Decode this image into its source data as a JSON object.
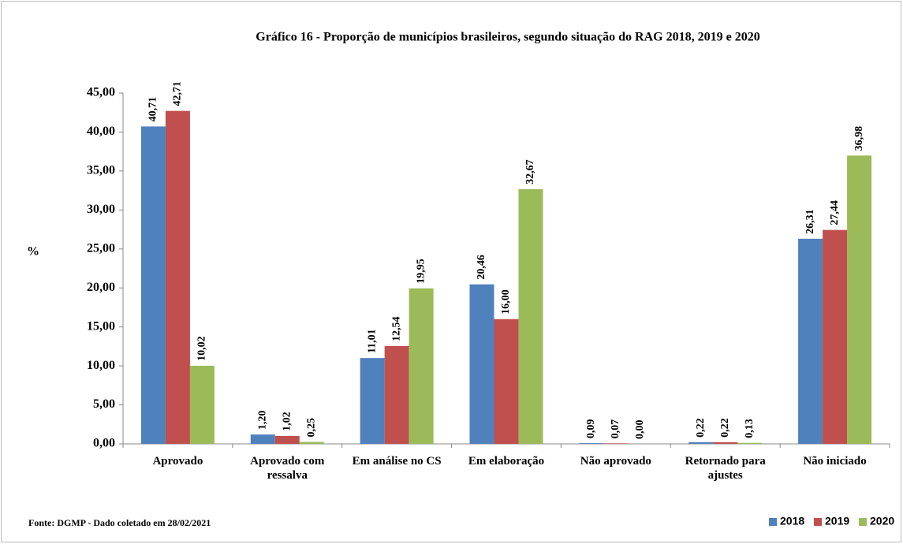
{
  "chart_data": {
    "type": "bar",
    "title": "Gráfico 16 - Proporção  de municípios brasileiros,  segundo situação do RAG  2018,  2019 e 2020",
    "y_label": "%",
    "source": "Fonte: DGMP - Dado coletado em 28/02/2021",
    "categories": [
      "Aprovado",
      "Aprovado com ressalva",
      "Em análise no CS",
      "Em elaboração",
      "Não aprovado",
      "Retornado para ajustes",
      "Não iniciado"
    ],
    "series": [
      {
        "name": "2018",
        "color": "#4f81bd",
        "values": [
          40.71,
          1.2,
          11.01,
          20.46,
          0.09,
          0.22,
          26.31
        ],
        "value_labels": [
          "40,71",
          "1,20",
          "11,01",
          "20,46",
          "0,09",
          "0,22",
          "26,31"
        ]
      },
      {
        "name": "2019",
        "color": "#c0504d",
        "values": [
          42.71,
          1.02,
          12.54,
          16.0,
          0.07,
          0.22,
          27.44
        ],
        "value_labels": [
          "42,71",
          "1,02",
          "12,54",
          "16,00",
          "0,07",
          "0,22",
          "27,44"
        ]
      },
      {
        "name": "2020",
        "color": "#9bbb59",
        "values": [
          10.02,
          0.25,
          19.95,
          32.67,
          0.0,
          0.13,
          36.98
        ],
        "value_labels": [
          "10,02",
          "0,25",
          "19,95",
          "32,67",
          "0,00",
          "0,13",
          "36,98"
        ]
      }
    ],
    "ylim": [
      0,
      45
    ],
    "yticks": [
      {
        "value": 0,
        "label": "0,00"
      },
      {
        "value": 5,
        "label": "5,00"
      },
      {
        "value": 10,
        "label": "10,00"
      },
      {
        "value": 15,
        "label": "15,00"
      },
      {
        "value": 20,
        "label": "20,00"
      },
      {
        "value": 25,
        "label": "25,00"
      },
      {
        "value": 30,
        "label": "30,00"
      },
      {
        "value": 35,
        "label": "35,00"
      },
      {
        "value": 40,
        "label": "40,00"
      },
      {
        "value": 45,
        "label": "45,00"
      }
    ],
    "grid": false,
    "legend": "bottom-right"
  }
}
